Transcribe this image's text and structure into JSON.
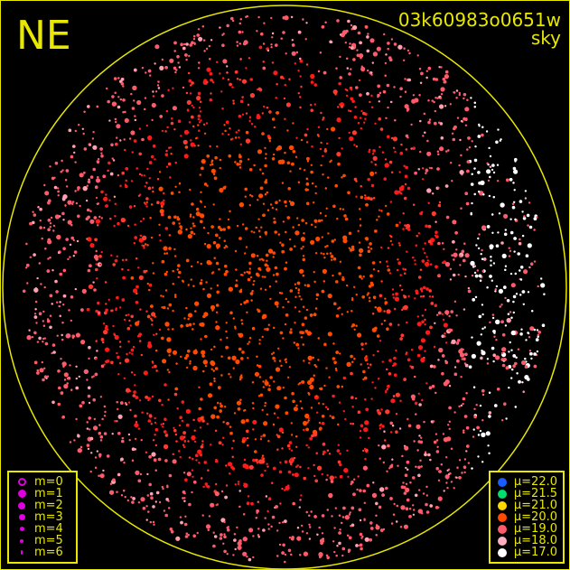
{
  "corner_label": "NE",
  "title": "03k60983o0651w",
  "subtitle": "sky",
  "colors": {
    "frame": "#e8e800",
    "background": "#000000"
  },
  "chart_data": {
    "type": "scatter",
    "title": "03k60983o0651w",
    "subtitle": "sky",
    "legend_size": {
      "placement": "bottom-left",
      "entries": [
        {
          "label": "m=0",
          "size": 0,
          "hollow": true
        },
        {
          "label": "m=1",
          "size": 1
        },
        {
          "label": "m=2",
          "size": 2
        },
        {
          "label": "m=3",
          "size": 3
        },
        {
          "label": "m=4",
          "size": 4
        },
        {
          "label": "m=5",
          "size": 5
        },
        {
          "label": "m=6",
          "size": 6
        }
      ]
    },
    "legend_color": {
      "placement": "bottom-right",
      "entries": [
        {
          "label": "μ=22.0",
          "color": "#1a5cff"
        },
        {
          "label": "μ=21.5",
          "color": "#00e070"
        },
        {
          "label": "μ=21.0",
          "color": "#ffd700"
        },
        {
          "label": "μ=20.0",
          "color": "#ff4a00"
        },
        {
          "label": "μ=19.0",
          "color": "#ff5a6a"
        },
        {
          "label": "μ=18.0",
          "color": "#ffb0c0"
        },
        {
          "label": "μ=17.0",
          "color": "#ffffff"
        }
      ]
    }
  }
}
